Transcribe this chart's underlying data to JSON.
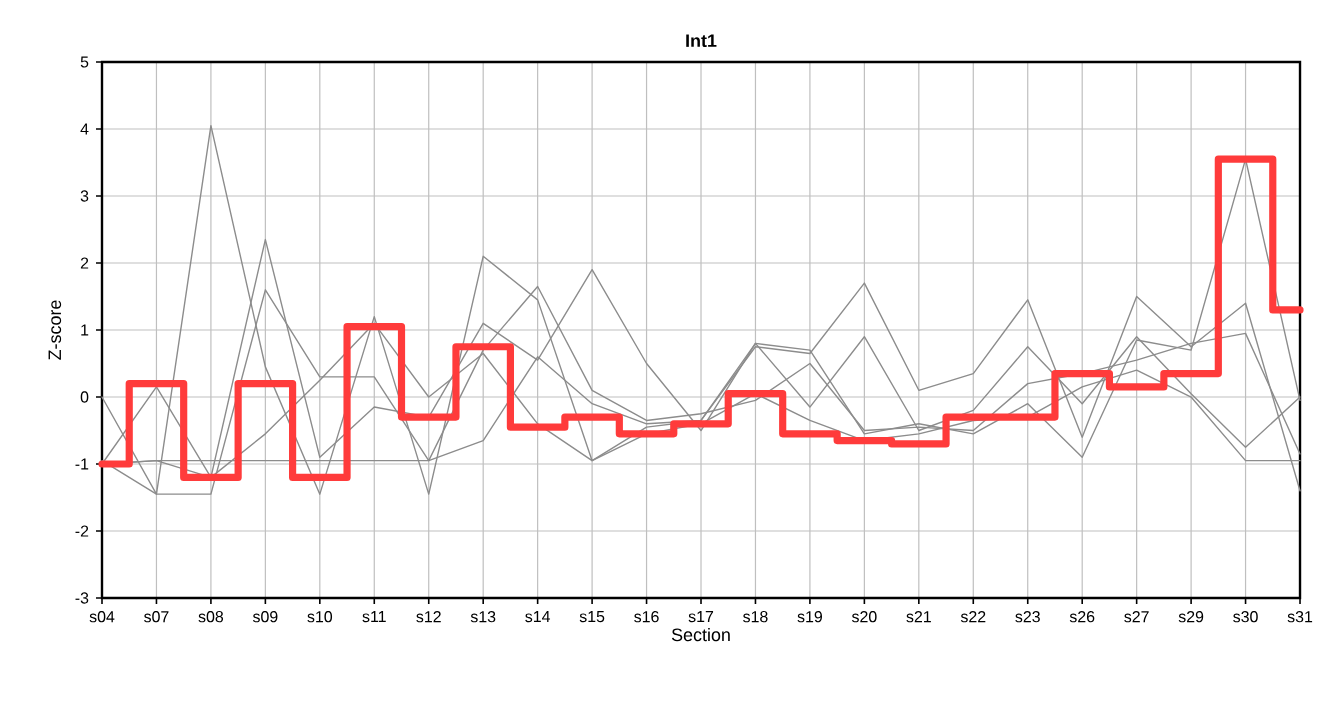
{
  "chart_data": {
    "type": "line",
    "title": "Int1",
    "xlabel": "Section",
    "ylabel": "Z-score",
    "categories": [
      "s04",
      "s07",
      "s08",
      "s09",
      "s10",
      "s11",
      "s12",
      "s13",
      "s14",
      "s15",
      "s16",
      "s17",
      "s18",
      "s19",
      "s20",
      "s21",
      "s22",
      "s23",
      "s26",
      "s27",
      "s29",
      "s30",
      "s31"
    ],
    "ylim": [
      -3,
      5
    ],
    "yticks": [
      -3,
      -2,
      -1,
      0,
      1,
      2,
      3,
      4,
      5
    ],
    "grid": true,
    "series": [
      {
        "color": "#8c8c8c",
        "values": [
          -1,
          -0.95,
          -0.95,
          -0.95,
          -0.95,
          -0.95,
          -0.95,
          -0.65,
          0.6,
          -0.1,
          -0.4,
          -0.35,
          0.8,
          0.7,
          -0.55,
          -0.4,
          -0.55,
          -0.1,
          -0.9,
          0.85,
          0.7,
          3.55,
          -0.05
        ]
      },
      {
        "color": "#8c8c8c",
        "values": [
          0,
          -1.45,
          4.05,
          0.45,
          -1.45,
          1.2,
          -1.45,
          2.1,
          1.45,
          -0.95,
          -0.45,
          -0.35,
          0.75,
          0.65,
          1.7,
          0.1,
          0.35,
          1.45,
          -0.6,
          1.5,
          0.75,
          1.4,
          -1.4
        ]
      },
      {
        "color": "#8c8c8c",
        "values": [
          -1,
          0.15,
          -1.2,
          2.35,
          -0.9,
          -0.15,
          -0.3,
          1.1,
          0.55,
          1.9,
          0.5,
          -0.5,
          0.8,
          -0.15,
          0.9,
          -0.5,
          -0.2,
          0.75,
          -0.1,
          0.9,
          0.05,
          -0.75,
          0.0
        ]
      },
      {
        "color": "#8c8c8c",
        "values": [
          -0.95,
          -1.45,
          -1.45,
          1.6,
          0.3,
          0.3,
          -0.95,
          0.7,
          1.65,
          0.1,
          -0.35,
          -0.25,
          -0.05,
          0.5,
          -0.5,
          -0.45,
          -0.5,
          0.2,
          0.35,
          0.55,
          0.8,
          0.95,
          -0.85
        ]
      },
      {
        "color": "#8c8c8c",
        "values": [
          -1,
          -0.95,
          -1.2,
          -0.55,
          0.25,
          1.1,
          0.0,
          0.65,
          -0.4,
          -0.95,
          -0.55,
          -0.4,
          0.05,
          -0.35,
          -0.65,
          -0.55,
          -0.35,
          -0.3,
          0.15,
          0.4,
          0.0,
          -0.95,
          -0.95
        ]
      },
      {
        "type": "step",
        "color": "#ff3b3b",
        "values": [
          -1,
          0.2,
          -1.2,
          0.2,
          -1.2,
          1.05,
          -0.3,
          0.75,
          -0.45,
          -0.3,
          -0.55,
          -0.4,
          0.05,
          -0.55,
          -0.65,
          -0.7,
          -0.3,
          -0.3,
          0.35,
          0.15,
          0.35,
          3.55,
          1.3
        ]
      }
    ]
  }
}
